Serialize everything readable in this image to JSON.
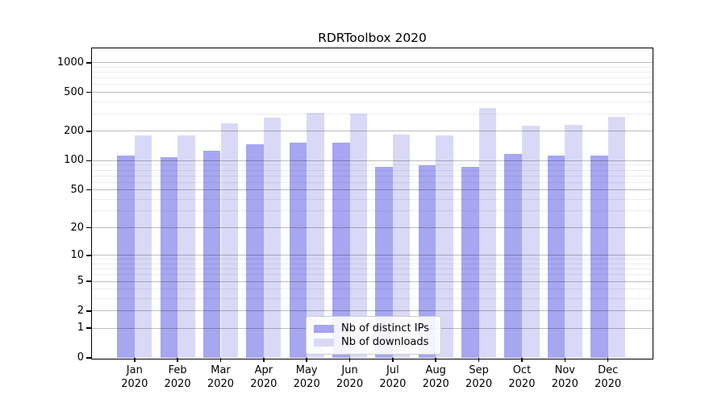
{
  "chart_data": {
    "type": "bar",
    "title": "RDRToolbox 2020",
    "categories": [
      "Jan",
      "Feb",
      "Mar",
      "Apr",
      "May",
      "Jun",
      "Jul",
      "Aug",
      "Sep",
      "Oct",
      "Nov",
      "Dec"
    ],
    "year_label": "2020",
    "series": [
      {
        "name": "Nb of distinct IPs",
        "color": "#a6a6f1",
        "values": [
          112,
          108,
          127,
          148,
          152,
          154,
          87,
          90,
          87,
          117,
          112,
          114
        ]
      },
      {
        "name": "Nb of downloads",
        "color": "#d9d9f7",
        "values": [
          180,
          180,
          242,
          276,
          310,
          302,
          184,
          183,
          343,
          228,
          232,
          280
        ]
      }
    ],
    "yscale": "log1p",
    "ylim": [
      0,
      1400
    ],
    "y_major_ticks": [
      0,
      1,
      2,
      5,
      10,
      20,
      50,
      100,
      200,
      500,
      1000
    ],
    "y_minor_ticks": [
      3,
      4,
      6,
      7,
      8,
      9,
      30,
      40,
      60,
      70,
      80,
      90,
      300,
      400,
      600,
      700,
      800,
      900
    ],
    "grid": true,
    "xlabel": "",
    "ylabel": "",
    "legend_position": "lower center-left inside plot"
  }
}
